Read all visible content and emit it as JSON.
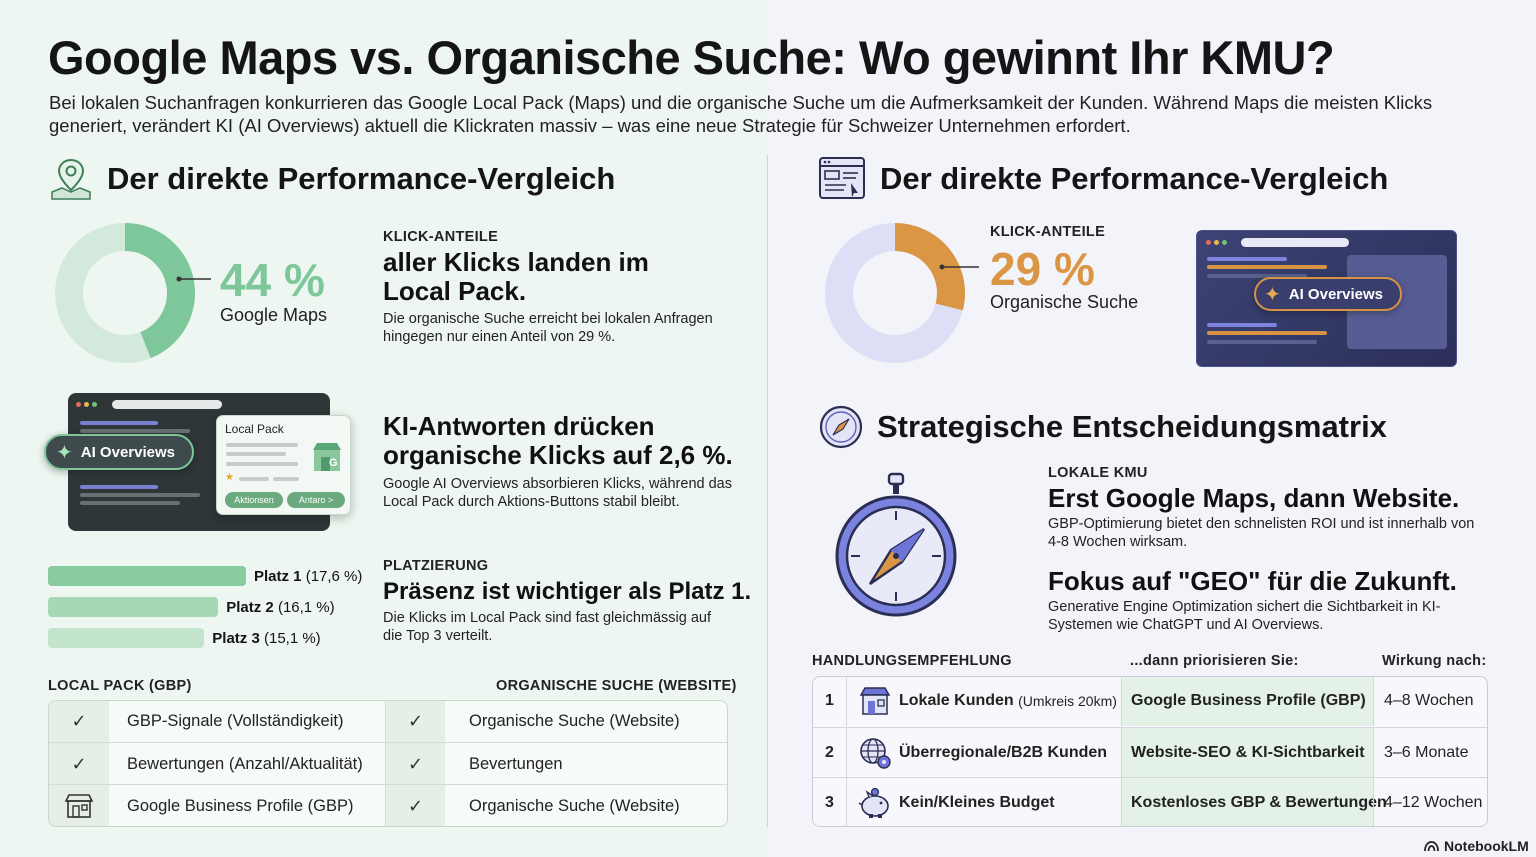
{
  "header": {
    "title": "Google Maps vs. Organische Suche: Wo gewinnt Ihr KMU?",
    "intro": "Bei lokalen Suchanfragen konkurrieren das Google Local Pack (Maps) und die organische Suche um die Aufmerksamkeit der Kunden. Während Maps die meisten Klicks generiert, verändert KI (AI Overviews) aktuell die Klickraten massiv – was eine neue Strategie für Schweizer Unternehmen erfordert."
  },
  "left": {
    "section_title": "Der direkte Performance-Vergleich",
    "section_icon": "map-pin-icon",
    "donut": {
      "percent_value": 44,
      "percent_label": "44 %",
      "label": "Google Maps",
      "color": "#7ec79a",
      "track_color": "#d3e9db"
    },
    "klick": {
      "kicker": "KLICK-ANTEILE",
      "headline": "aller Klicks landen im Local Pack.",
      "text": "Die organische Suche erreicht bei lokalen Anfragen hingegen nur einen Anteil von 29 %."
    },
    "mockup": {
      "ai_badge": "AI Overviews",
      "local_pack_label": "Local Pack",
      "btn1": "Aktionsen",
      "btn2": "Antaro >",
      "store_letter": "G"
    },
    "ki": {
      "headline": "KI-Antworten drücken organische Klicks auf 2,6 %.",
      "text": "Google AI Overviews absorbieren Klicks, während das Local Pack durch Aktions-Buttons stabil bleibt."
    },
    "bars": [
      {
        "name": "Platz 1",
        "detail": "(17,6 %)",
        "value": 17.6
      },
      {
        "name": "Platz 2",
        "detail": "(16,1 %)",
        "value": 16.1
      },
      {
        "name": "Platz 3",
        "detail": "(15,1 %)",
        "value": 15.1
      }
    ],
    "platz": {
      "kicker": "PLATZIERUNG",
      "headline": "Präsenz ist wichtiger als Platz 1.",
      "text": "Die Klicks im Local Pack sind fast gleichmässig auf die Top 3 verteilt."
    },
    "table": {
      "col1_header": "LOCAL PACK (GBP)",
      "col2_header": "ORGANISCHE SUCHE (WEBSITE)",
      "rows": [
        {
          "icon1": "check-icon",
          "left": "GBP-Signale (Vollständigkeit)",
          "icon2": "check-icon",
          "right": "Organische Suche (Website)"
        },
        {
          "icon1": "check-icon",
          "left": "Bewertungen (Anzahl/Aktualität)",
          "icon2": "check-icon",
          "right": "Bevertungen"
        },
        {
          "icon1": "storefront-icon",
          "left": "Google Business Profile (GBP)",
          "icon2": "check-icon",
          "right": "Organische Suche (Website)"
        }
      ]
    }
  },
  "right": {
    "section_title": "Der direkte Performance-Vergleich",
    "section_icon": "browser-window-icon",
    "donut": {
      "percent_value": 29,
      "percent_label": "29 %",
      "label": "Organische Suche",
      "kicker": "KLICK-ANTEILE",
      "color": "#db9645",
      "track_color": "#dcdff5"
    },
    "mockup": {
      "ai_badge": "AI Overviews"
    },
    "matrix": {
      "section_title": "Strategische Entscheidungsmatrix",
      "section_icon": "compass-icon",
      "kicker": "LOKALE KMU",
      "headline1": "Erst Google Maps, dann Website.",
      "text1": "GBP-Optimierung bietet den schnelisten ROI und ist innerhalb von 4-8 Wochen wirksam.",
      "headline2": "Fokus auf \"GEO\" für die Zukunft.",
      "text2": "Generative Engine Optimization sichert die Sichtbarkeit in KI-Systemen wie ChatGPT und AI Overviews."
    },
    "table": {
      "h1": "HANDLUNGSEMPFEHLUNG",
      "h2": "...dann priorisieren Sie:",
      "h3": "Wirkung nach:",
      "rows": [
        {
          "num": "1",
          "icon": "storefront-icon",
          "target": "Lokale Kunden",
          "target_note": "(Umkreis 20km)",
          "priority": "Google Business Profile (GBP)",
          "time": "4–8 Wochen"
        },
        {
          "num": "2",
          "icon": "globe-gear-icon",
          "target": "Überregionale/B2B Kunden",
          "target_note": "",
          "priority": "Website-SEO & KI-Sichtbarkeit",
          "time": "3–6 Monate"
        },
        {
          "num": "3",
          "icon": "piggy-bank-icon",
          "target": "Kein/Kleines Budget",
          "target_note": "",
          "priority": "Kostenloses GBP & Bewertungen",
          "time": "4–12 Wochen"
        }
      ]
    }
  },
  "footer": {
    "brand": "NotebookLM",
    "brand_icon": "notebooklm-logo-icon"
  }
}
